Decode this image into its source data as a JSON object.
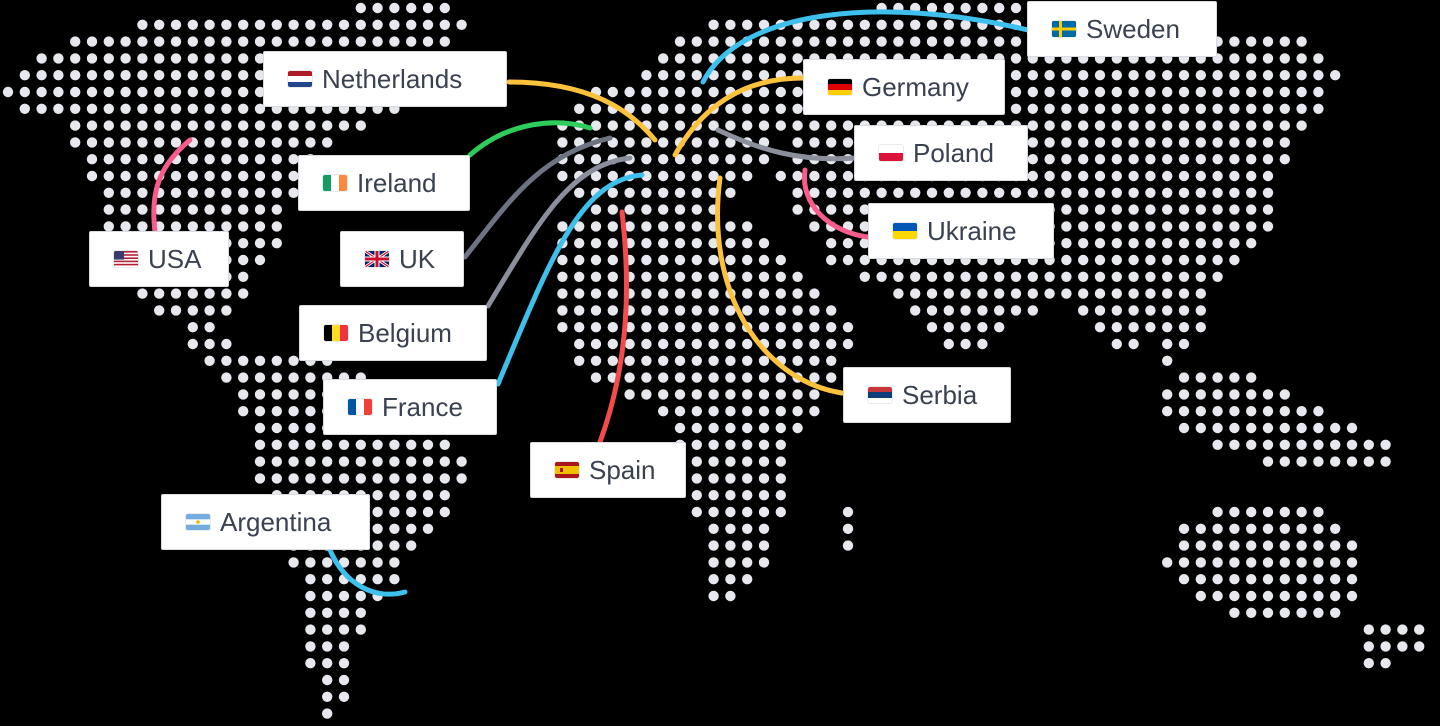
{
  "colors": {
    "background": "#000000",
    "dot": "#e6e8ee",
    "label_text": "#3a4150",
    "label_bg": "#ffffff"
  },
  "countries": [
    {
      "id": "sweden",
      "name": "Sweden",
      "flag_icon": "sweden-flag-icon",
      "line_color": "#3ec0ec"
    },
    {
      "id": "netherlands",
      "name": "Netherlands",
      "flag_icon": "netherlands-flag-icon",
      "line_color": "#fcc23c"
    },
    {
      "id": "germany",
      "name": "Germany",
      "flag_icon": "germany-flag-icon",
      "line_color": "#fcc23c"
    },
    {
      "id": "poland",
      "name": "Poland",
      "flag_icon": "poland-flag-icon",
      "line_color": "#8a8f9b"
    },
    {
      "id": "ireland",
      "name": "Ireland",
      "flag_icon": "ireland-flag-icon",
      "line_color": "#2ecc5a"
    },
    {
      "id": "ukraine",
      "name": "Ukraine",
      "flag_icon": "ukraine-flag-icon",
      "line_color": "#f85c8c"
    },
    {
      "id": "usa",
      "name": "USA",
      "flag_icon": "usa-flag-icon",
      "line_color": "#f85c8c"
    },
    {
      "id": "uk",
      "name": "UK",
      "flag_icon": "uk-flag-icon",
      "line_color": "#6d7381"
    },
    {
      "id": "belgium",
      "name": "Belgium",
      "flag_icon": "belgium-flag-icon",
      "line_color": "#8a8f9b"
    },
    {
      "id": "serbia",
      "name": "Serbia",
      "flag_icon": "serbia-flag-icon",
      "line_color": "#fcc23c"
    },
    {
      "id": "france",
      "name": "France",
      "flag_icon": "france-flag-icon",
      "line_color": "#3ec0ec"
    },
    {
      "id": "spain",
      "name": "Spain",
      "flag_icon": "spain-flag-icon",
      "line_color": "#f24b4b"
    },
    {
      "id": "argentina",
      "name": "Argentina",
      "flag_icon": "argentina-flag-icon",
      "line_color": "#3ec0ec"
    }
  ]
}
